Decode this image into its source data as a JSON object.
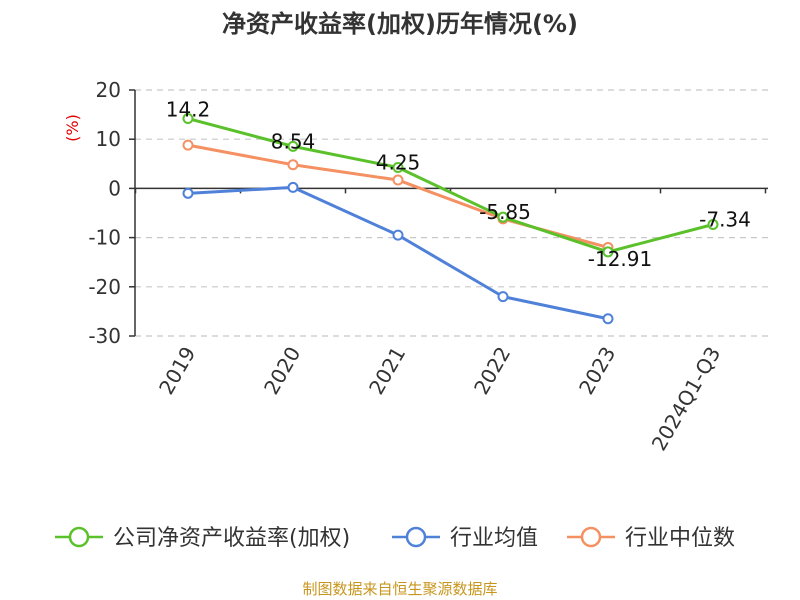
{
  "chart_data": {
    "type": "line",
    "title": "净资产收益率(加权)历年情况(%)",
    "ylabel": "(%)",
    "xlabel": "",
    "categories": [
      "2019",
      "2020",
      "2021",
      "2022",
      "2023",
      "2024Q1-Q3"
    ],
    "ylim": [
      -30,
      20
    ],
    "yticks": [
      20,
      10,
      0,
      -10,
      -20,
      -30
    ],
    "grid": true,
    "legend_position": "bottom",
    "series": [
      {
        "name": "公司净资产收益率(加权)",
        "color": "#5ac12a",
        "values": [
          14.2,
          8.54,
          4.25,
          -5.85,
          -12.91,
          -7.34
        ],
        "labels": [
          "14.2",
          "8.54",
          "4.25",
          "-5.85",
          "-12.91",
          "-7.34"
        ]
      },
      {
        "name": "行业均值",
        "color": "#4f81d9",
        "values": [
          -1,
          0.2,
          -9.5,
          -22,
          -26.5,
          null
        ]
      },
      {
        "name": "行业中位数",
        "color": "#f49062",
        "values": [
          8.8,
          4.8,
          1.7,
          -6.2,
          -12.0,
          null
        ]
      }
    ],
    "source": "制图数据来自恒生聚源数据库"
  }
}
